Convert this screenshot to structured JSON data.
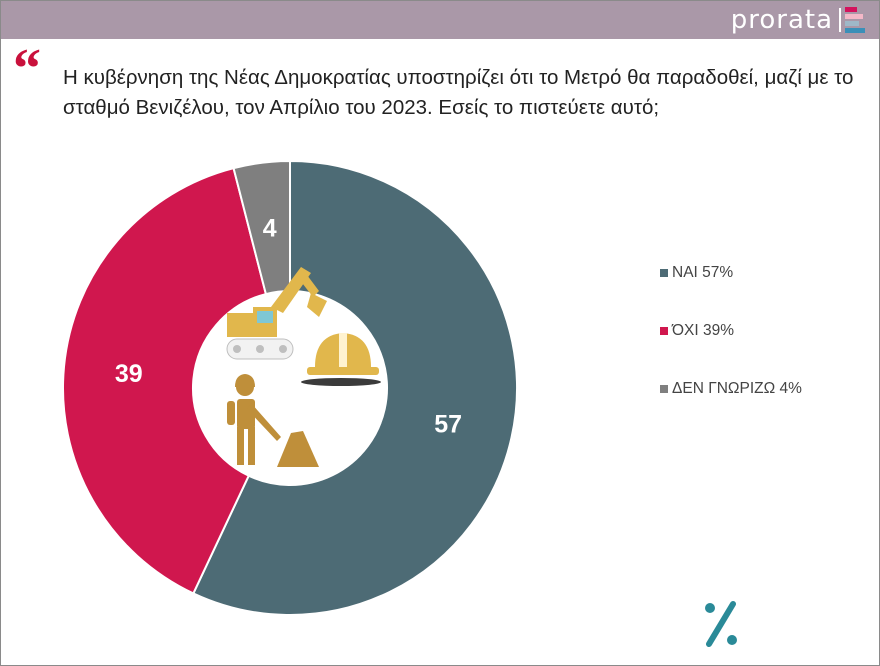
{
  "brand": {
    "name": "prorata",
    "stripe_colors": [
      "#d4135d",
      "#f4b8c8",
      "#9fb8c8",
      "#3a8fb8"
    ]
  },
  "header": {
    "quote_mark": "“",
    "question": "Η κυβέρνηση της Νέας Δημοκρατίας υποστηρίζει ότι το Μετρό θα παραδοθεί, μαζί με το σταθμό Βενιζέλου, τον Απρίλιο του 2023. Εσείς το πιστεύετε αυτό;"
  },
  "colors": {
    "yes": "#4d6b75",
    "no": "#d0174e",
    "dont_know": "#7f7f7f",
    "icon": "#e1b74c",
    "icon_dark": "#bf8f3a",
    "accent": "#2a8a98"
  },
  "icons": [
    "excavator-icon",
    "hard-hat-icon",
    "construction-worker-icon"
  ],
  "chart_data": {
    "type": "pie",
    "subtype": "donut",
    "start": "top, clockwise",
    "categories": [
      "ΝΑΙ",
      "ΌΧΙ",
      "ΔΕΝ ΓΝΩΡΙΖΩ"
    ],
    "values": [
      57,
      39,
      4
    ],
    "data_labels": [
      "57",
      "39",
      "4"
    ],
    "legend": [
      "ΝΑΙ 57%",
      "ΌΧΙ 39%",
      "ΔΕΝ ΓΝΩΡΙΖΩ 4%"
    ],
    "legend_position": "right"
  },
  "footer": {
    "symbol": "%"
  }
}
